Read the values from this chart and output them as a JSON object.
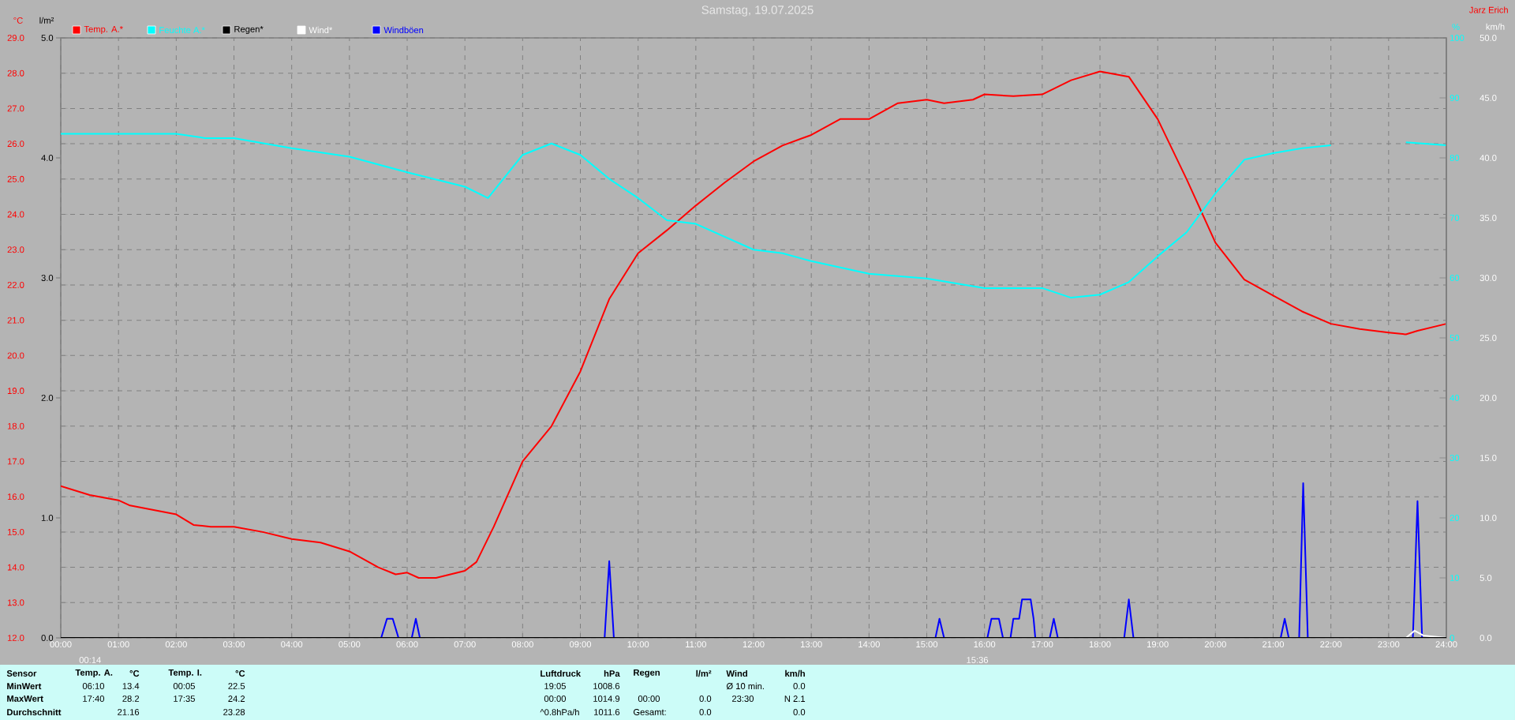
{
  "chart_data": {
    "type": "line",
    "title": "Samstag, 19.07.2025",
    "ylabel": "°C",
    "y2label": "%",
    "y3label": "km/h",
    "xlim": [
      0,
      24
    ],
    "xticks": [
      {
        "value": 0,
        "label": "00:00"
      },
      {
        "value": 1,
        "label": "01:00"
      },
      {
        "value": 2,
        "label": "02:00"
      },
      {
        "value": 3,
        "label": "03:00"
      },
      {
        "value": 4,
        "label": "04:00"
      },
      {
        "value": 5,
        "label": "05:00"
      },
      {
        "value": 6,
        "label": "06:00"
      },
      {
        "value": 7,
        "label": "07:00"
      },
      {
        "value": 8,
        "label": "08:00"
      },
      {
        "value": 9,
        "label": "09:00"
      },
      {
        "value": 10,
        "label": "10:00"
      },
      {
        "value": 11,
        "label": "11:00"
      },
      {
        "value": 12,
        "label": "12:00"
      },
      {
        "value": 13,
        "label": "13:00"
      },
      {
        "value": 14,
        "label": "14:00"
      },
      {
        "value": 15,
        "label": "15:00"
      },
      {
        "value": 16,
        "label": "16:00"
      },
      {
        "value": 17,
        "label": "17:00"
      },
      {
        "value": 18,
        "label": "18:00"
      },
      {
        "value": 19,
        "label": "19:00"
      },
      {
        "value": 20,
        "label": "20:00"
      },
      {
        "value": 21,
        "label": "21:00"
      },
      {
        "value": 22,
        "label": "22:00"
      },
      {
        "value": 23,
        "label": "23:00"
      },
      {
        "value": 24,
        "label": "24:00"
      }
    ],
    "ylim": [
      12,
      29
    ],
    "yticks": [
      {
        "value": 12,
        "label": "12.0"
      },
      {
        "value": 13,
        "label": "13.0"
      },
      {
        "value": 14,
        "label": "14.0"
      },
      {
        "value": 15,
        "label": "15.0"
      },
      {
        "value": 16,
        "label": "16.0"
      },
      {
        "value": 17,
        "label": "17.0"
      },
      {
        "value": 18,
        "label": "18.0"
      },
      {
        "value": 19,
        "label": "19.0"
      },
      {
        "value": 20,
        "label": "20.0"
      },
      {
        "value": 21,
        "label": "21.0"
      },
      {
        "value": 22,
        "label": "22.0"
      },
      {
        "value": 23,
        "label": "23.0"
      },
      {
        "value": 24,
        "label": "24.0"
      },
      {
        "value": 25,
        "label": "25.0"
      },
      {
        "value": 26,
        "label": "26.0"
      },
      {
        "value": 27,
        "label": "27.0"
      },
      {
        "value": 28,
        "label": "28.0"
      },
      {
        "value": 29,
        "label": "29.0"
      }
    ],
    "y2lim": [
      0,
      100
    ],
    "y2ticks": [
      0,
      10,
      20,
      30,
      40,
      50,
      60,
      70,
      80,
      90,
      100
    ],
    "y3lim": [
      0,
      50
    ],
    "y3ticks": [
      {
        "value": 0,
        "label": "0.0"
      },
      {
        "value": 5,
        "label": "5.0"
      },
      {
        "value": 10,
        "label": "10.0"
      },
      {
        "value": 15,
        "label": "15.0"
      },
      {
        "value": 20,
        "label": "20.0"
      },
      {
        "value": 25,
        "label": "25.0"
      },
      {
        "value": 30,
        "label": "30.0"
      },
      {
        "value": 35,
        "label": "35.0"
      },
      {
        "value": 40,
        "label": "40.0"
      },
      {
        "value": 45,
        "label": "45.0"
      },
      {
        "value": 50,
        "label": "50.0"
      }
    ],
    "grid": true,
    "legend": "top left",
    "series": [
      {
        "name": "Temp. A.*",
        "color": "#ff0000",
        "x": [
          0,
          0.5,
          1,
          1.2,
          2,
          2.3,
          2.6,
          3,
          3.5,
          4,
          4.5,
          5,
          5.5,
          5.8,
          6,
          6.2,
          6.5,
          7,
          7.2,
          7.5,
          8,
          8.5,
          9,
          9.5,
          10,
          10.5,
          11,
          11.5,
          12,
          12.5,
          13,
          13.5,
          14,
          14.5,
          15,
          15.3,
          15.8,
          16,
          16.5,
          17,
          17.5,
          18,
          18.5,
          19,
          19.5,
          20,
          20.5,
          21,
          21.5,
          22,
          22.5,
          23,
          23.3,
          23.5,
          24
        ],
        "values": [
          16.3,
          16.05,
          15.9,
          15.75,
          15.5,
          15.2,
          15.15,
          15.15,
          15.0,
          14.8,
          14.7,
          14.45,
          14.0,
          13.8,
          13.85,
          13.7,
          13.7,
          13.9,
          14.15,
          15.15,
          17.0,
          18.0,
          19.55,
          21.6,
          22.9,
          23.55,
          24.25,
          24.9,
          25.5,
          25.95,
          26.25,
          26.7,
          26.7,
          27.15,
          27.25,
          27.15,
          27.25,
          27.4,
          27.35,
          27.4,
          27.8,
          28.05,
          27.9,
          26.7,
          25.0,
          23.2,
          22.15,
          21.7,
          21.25,
          20.9,
          20.75,
          20.65,
          20.6,
          20.7,
          20.9
        ]
      },
      {
        "name": "Feuchte A.*",
        "color": "#00ffff",
        "axis": "y2",
        "x": [
          0,
          2,
          2.5,
          3,
          4,
          5,
          6,
          7,
          7.4,
          8,
          8.5,
          9,
          9.5,
          10,
          10.5,
          11,
          12,
          12.5,
          13,
          14,
          15,
          16,
          17,
          17.5,
          18,
          18.5,
          19,
          19.5,
          20,
          20.5,
          21,
          21.5,
          22,
          22.5,
          23,
          23.3,
          24
        ],
        "values": [
          84.0,
          84.0,
          83.3,
          83.3,
          81.6,
          80.2,
          77.6,
          75.2,
          73.3,
          80.5,
          82.4,
          80.5,
          76.5,
          73.3,
          69.6,
          69.0,
          64.7,
          64.1,
          62.8,
          60.7,
          59.9,
          58.3,
          58.3,
          56.7,
          57.2,
          59.3,
          63.6,
          67.6,
          74.1,
          79.7,
          80.8,
          81.6,
          82.1,
          null,
          null,
          82.6,
          82.1
        ]
      },
      {
        "name": "Regen*",
        "color": "#000000",
        "axis": "y3",
        "x": [
          0,
          24
        ],
        "values": [
          0,
          0
        ]
      },
      {
        "name": "Wind*",
        "color": "#ffffff",
        "axis": "y3",
        "x": [
          23.3,
          23.45,
          23.6,
          23.8,
          24
        ],
        "values": [
          0,
          0.6,
          0.2,
          0.1,
          0
        ]
      },
      {
        "name": "Windböen",
        "color": "#0000ff",
        "axis": "y3",
        "x": [
          0,
          5.55,
          5.65,
          5.75,
          5.85,
          6.08,
          6.15,
          6.22,
          9.42,
          9.5,
          9.58,
          15.15,
          15.22,
          15.3,
          16.05,
          16.12,
          16.25,
          16.32,
          16.45,
          16.5,
          16.6,
          16.65,
          16.8,
          16.85,
          16.88,
          17.13,
          17.2,
          17.27,
          18.42,
          18.5,
          18.58,
          21.13,
          21.2,
          21.27,
          21.45,
          21.52,
          21.6,
          23.42,
          23.5,
          23.58,
          24
        ],
        "values": [
          0,
          0,
          1.6,
          1.6,
          0,
          0,
          1.6,
          0,
          0,
          6.4,
          0,
          0,
          1.6,
          0,
          0,
          1.6,
          1.6,
          0,
          0,
          1.6,
          1.6,
          3.2,
          3.2,
          1.6,
          0,
          0,
          1.6,
          0,
          0,
          3.2,
          0,
          0,
          1.6,
          0,
          0,
          12.9,
          0,
          0,
          11.4,
          0,
          0
        ]
      }
    ],
    "annotations": [
      "Jarz Erich",
      "l/m²",
      "0.0",
      "1.0",
      "2.0",
      "3.0",
      "4.0",
      "5.0",
      {
        "text": "00:14",
        "x": 0.233,
        "y": 12
      },
      {
        "text": "15:36",
        "x": 15.6,
        "y": 12
      },
      "Sensor",
      "Temp. A.",
      "°C",
      "Temp. I.",
      "°C",
      "Luftdruck",
      "hPa",
      "Regen",
      "l/m²",
      "Wind",
      "km/h",
      "MinWert",
      "06:10",
      "13.4",
      "00:05",
      "22.5",
      "19:05",
      "1008.6",
      "Ø 10 min.",
      "0.0",
      "MaxWert",
      "17:40",
      "28.2",
      "17:35",
      "24.2",
      "00:00",
      "1014.9",
      "00:00",
      "0.0",
      "23:30",
      "N 2.1",
      "Durchschnitt",
      "21.16",
      "23.28",
      "^0.8hPa/h",
      "1011.6",
      "Gesamt:",
      "0.0",
      "0.0"
    ]
  }
}
